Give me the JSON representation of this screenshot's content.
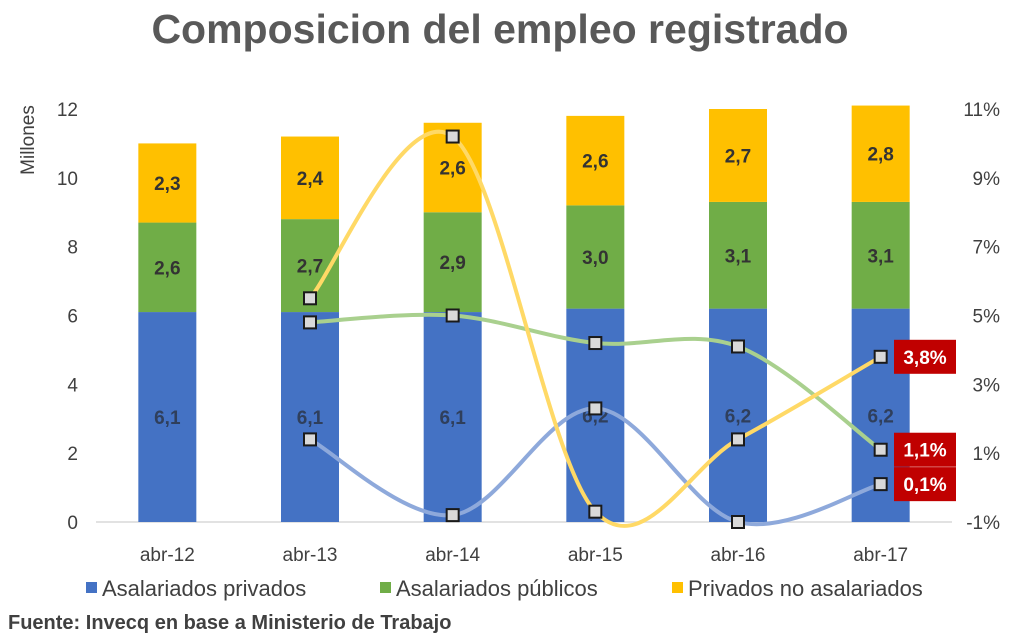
{
  "chart_data": {
    "type": "bar",
    "title": "Composicion del empleo registrado",
    "ylabel": "Millones",
    "ylim": [
      0,
      12
    ],
    "yticks": [
      "0",
      "2",
      "4",
      "6",
      "8",
      "10",
      "12"
    ],
    "y2lim": [
      -1,
      11
    ],
    "y2ticks": [
      "-1%",
      "1%",
      "3%",
      "5%",
      "7%",
      "9%",
      "11%"
    ],
    "categories": [
      "abr-12",
      "abr-13",
      "abr-14",
      "abr-15",
      "abr-16",
      "abr-17"
    ],
    "series": [
      {
        "name": "Asalariados privados",
        "kind": "bar",
        "color": "#4472C4",
        "values": [
          6.1,
          6.1,
          6.1,
          6.2,
          6.2,
          6.2
        ],
        "labels": [
          "6,1",
          "6,1",
          "6,1",
          "6,2",
          "6,2",
          "6,2"
        ],
        "label_color": "#2F3F5C"
      },
      {
        "name": "Asalariados públicos",
        "kind": "bar",
        "color": "#70AD47",
        "values": [
          2.6,
          2.7,
          2.9,
          3.0,
          3.1,
          3.1
        ],
        "labels": [
          "2,6",
          "2,7",
          "2,9",
          "3,0",
          "3,1",
          "3,1"
        ],
        "label_color": "#333333"
      },
      {
        "name": "Privados no asalariados",
        "kind": "bar",
        "color": "#FFC000",
        "values": [
          2.3,
          2.4,
          2.6,
          2.6,
          2.7,
          2.8
        ],
        "labels": [
          "2,3",
          "2,4",
          "2,6",
          "2,6",
          "2,7",
          "2,8"
        ],
        "label_color": "#333333"
      }
    ],
    "growth_lines": [
      {
        "for": "Asalariados privados",
        "color": "#8EA9DB",
        "categories": [
          "abr-13",
          "abr-14",
          "abr-15",
          "abr-16",
          "abr-17"
        ],
        "values": [
          1.4,
          -0.8,
          2.3,
          -1.0,
          0.1
        ]
      },
      {
        "for": "Asalariados públicos",
        "color": "#A9D08E",
        "categories": [
          "abr-13",
          "abr-14",
          "abr-15",
          "abr-16",
          "abr-17"
        ],
        "values": [
          4.8,
          5.0,
          4.2,
          4.1,
          1.1
        ]
      },
      {
        "for": "Privados no asalariados",
        "color": "#FFD966",
        "categories": [
          "abr-13",
          "abr-14",
          "abr-15",
          "abr-16",
          "abr-17"
        ],
        "values": [
          5.5,
          10.2,
          -0.7,
          1.4,
          3.8
        ]
      }
    ],
    "callouts": [
      {
        "text": "3,8%",
        "value": 3.8
      },
      {
        "text": "1,1%",
        "value": 1.1
      },
      {
        "text": "0,1%",
        "value": 0.1
      }
    ],
    "callout_color": "#C00000",
    "legend_position": "bottom",
    "grid": false
  },
  "source": "Fuente: Invecq en base a Ministerio de Trabajo"
}
